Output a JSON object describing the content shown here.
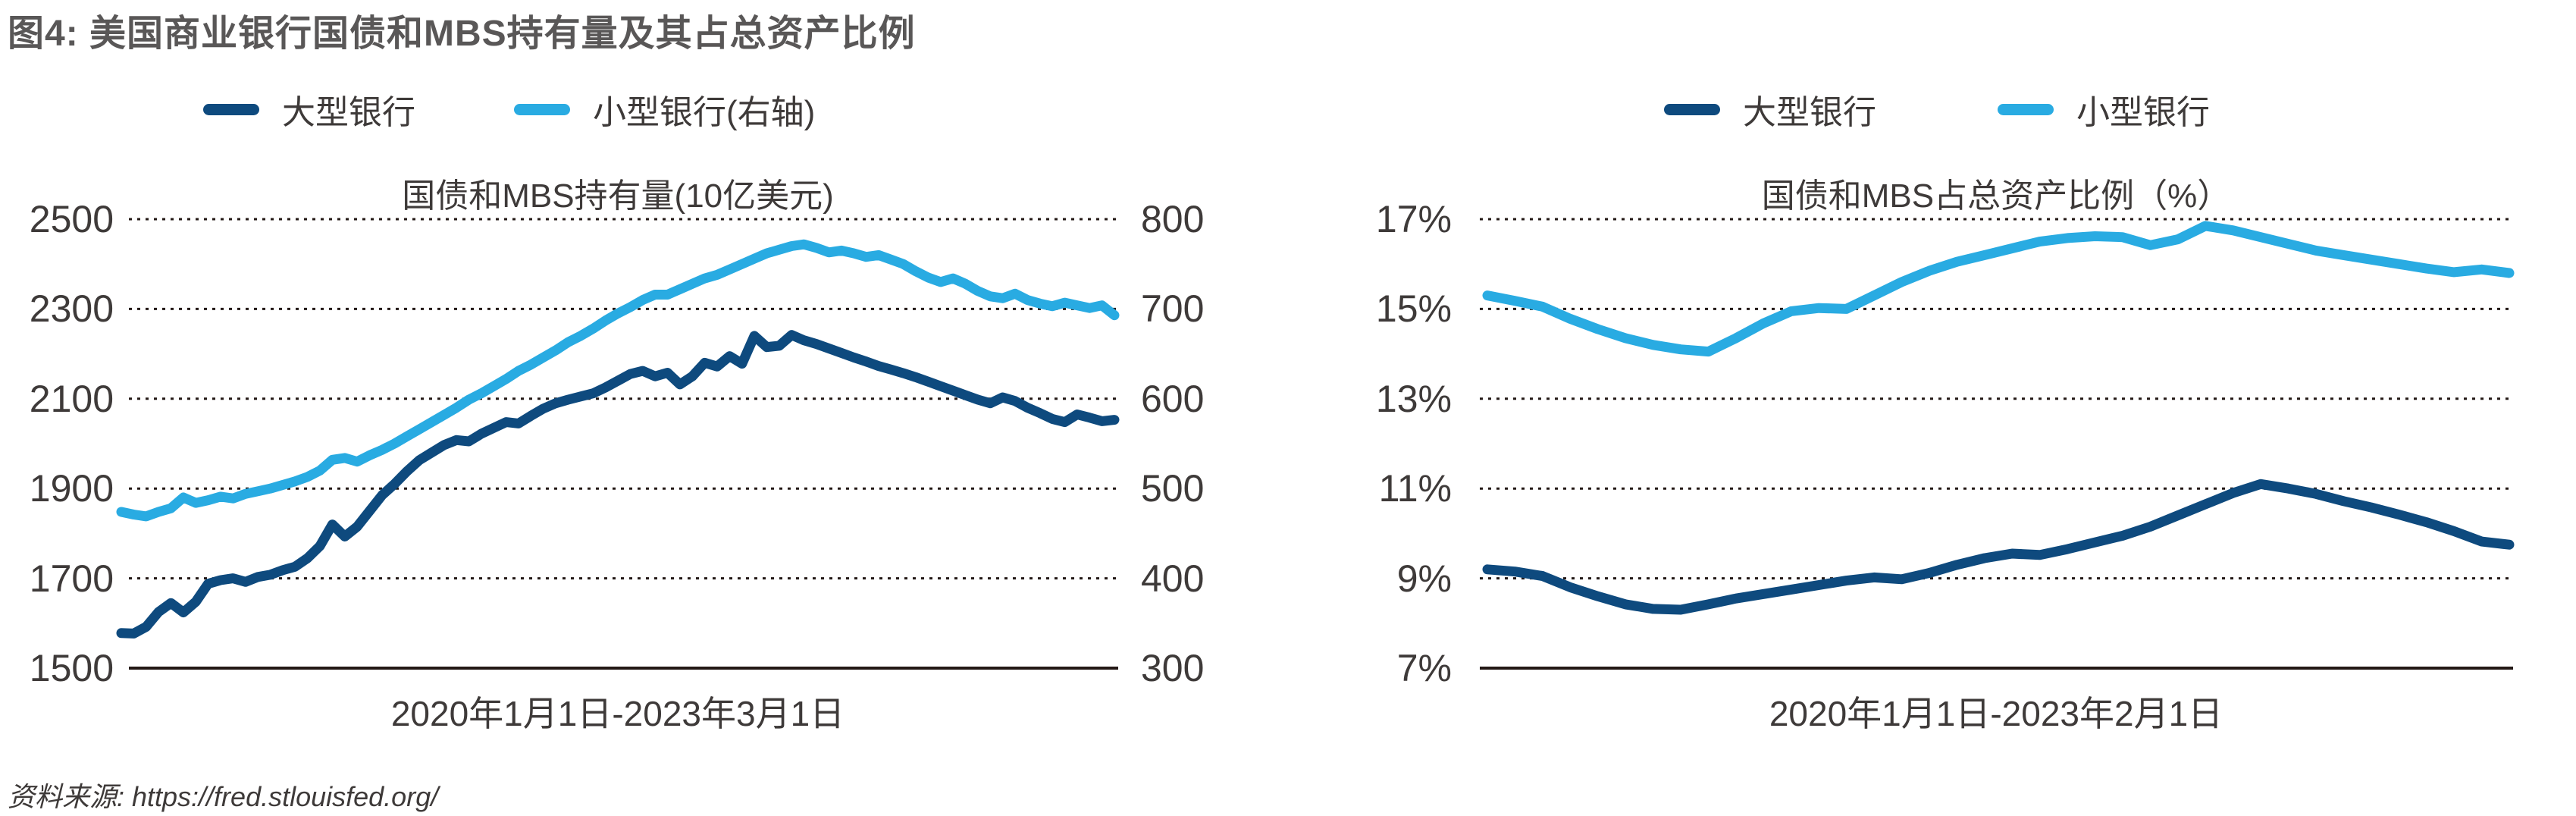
{
  "page_title": "图4: 美国商业银行国债和MBS持有量及其占总资产比例",
  "source_note": "资料来源: https://fred.stlouisfed.org/",
  "colors": {
    "large_banks": "#0e4a7e",
    "small_banks": "#29abe2",
    "title_gray": "#595757",
    "text_dark": "#3e3a39",
    "gridline": "#231815"
  },
  "chart_data": [
    {
      "id": "holdings",
      "type": "line",
      "title": "国债和MBS持有量(10亿美元)",
      "xlabel": "2020年1月1日-2023年3月1日",
      "grid": "dotted-horizontal",
      "legend": [
        {
          "name": "大型银行",
          "color": "#0e4a7e"
        },
        {
          "name": "小型银行(右轴)",
          "color": "#29abe2"
        }
      ],
      "left_axis": {
        "tick_labels": [
          "2500",
          "2300",
          "2100",
          "1900",
          "1700",
          "1500"
        ],
        "range": [
          1500,
          2500
        ]
      },
      "right_axis": {
        "tick_labels": [
          "800",
          "700",
          "600",
          "500",
          "400",
          "300"
        ],
        "range": [
          300,
          800
        ]
      },
      "x_range_note": "weekly observations, 2020-01-01 to 2023-03-01",
      "series": [
        {
          "name": "大型银行",
          "axis": "left",
          "color": "#0e4a7e",
          "values": [
            1578,
            1577,
            1592,
            1625,
            1645,
            1624,
            1648,
            1688,
            1696,
            1700,
            1692,
            1703,
            1708,
            1718,
            1726,
            1745,
            1772,
            1820,
            1793,
            1815,
            1850,
            1885,
            1910,
            1938,
            1963,
            1980,
            1997,
            2008,
            2005,
            2022,
            2035,
            2048,
            2045,
            2062,
            2078,
            2090,
            2098,
            2105,
            2112,
            2125,
            2140,
            2155,
            2162,
            2150,
            2158,
            2132,
            2150,
            2180,
            2172,
            2195,
            2178,
            2240,
            2215,
            2218,
            2242,
            2230,
            2222,
            2212,
            2202,
            2192,
            2183,
            2173,
            2165,
            2157,
            2148,
            2138,
            2128,
            2118,
            2108,
            2098,
            2090,
            2103,
            2095,
            2080,
            2068,
            2055,
            2048,
            2065,
            2058,
            2050,
            2053
          ]
        },
        {
          "name": "小型银行(右轴)",
          "axis": "right",
          "color": "#29abe2",
          "values": [
            474,
            471,
            469,
            474,
            478,
            490,
            484,
            487,
            491,
            489,
            494,
            497,
            500,
            504,
            508,
            513,
            520,
            532,
            534,
            530,
            537,
            543,
            550,
            558,
            566,
            574,
            582,
            590,
            599,
            606,
            614,
            622,
            631,
            638,
            646,
            654,
            663,
            670,
            678,
            687,
            695,
            702,
            710,
            716,
            716,
            722,
            728,
            734,
            738,
            744,
            750,
            756,
            762,
            766,
            770,
            772,
            768,
            763,
            765,
            762,
            758,
            760,
            755,
            750,
            742,
            735,
            730,
            734,
            728,
            720,
            714,
            712,
            717,
            710,
            706,
            703,
            707,
            704,
            701,
            704,
            693
          ]
        }
      ]
    },
    {
      "id": "share-of-assets",
      "type": "line",
      "title": "国债和MBS占总资产比例（%）",
      "xlabel": "2020年1月1日-2023年2月1日",
      "grid": "dotted-horizontal",
      "legend": [
        {
          "name": "大型银行",
          "color": "#0e4a7e"
        },
        {
          "name": "小型银行",
          "color": "#29abe2"
        }
      ],
      "left_axis": {
        "tick_labels": [
          "17%",
          "15%",
          "13%",
          "11%",
          "9%",
          "7%"
        ],
        "range": [
          7,
          17
        ]
      },
      "right_axis": null,
      "x_range_note": "monthly observations, 2020-01-01 to 2023-02-01",
      "series": [
        {
          "name": "大型银行",
          "axis": "left",
          "color": "#0e4a7e",
          "values": [
            9.2,
            9.15,
            9.05,
            8.8,
            8.6,
            8.42,
            8.32,
            8.3,
            8.42,
            8.55,
            8.65,
            8.75,
            8.85,
            8.95,
            9.02,
            8.98,
            9.12,
            9.3,
            9.45,
            9.55,
            9.52,
            9.65,
            9.8,
            9.95,
            10.15,
            10.4,
            10.65,
            10.9,
            11.1,
            11.0,
            10.88,
            10.72,
            10.58,
            10.42,
            10.25,
            10.05,
            9.82,
            9.75
          ]
        },
        {
          "name": "小型银行",
          "axis": "left",
          "color": "#29abe2",
          "values": [
            15.3,
            15.18,
            15.05,
            14.78,
            14.55,
            14.35,
            14.2,
            14.1,
            14.05,
            14.35,
            14.68,
            14.95,
            15.02,
            15.0,
            15.3,
            15.6,
            15.85,
            16.05,
            16.2,
            16.35,
            16.5,
            16.58,
            16.62,
            16.6,
            16.42,
            16.55,
            16.85,
            16.75,
            16.6,
            16.45,
            16.3,
            16.2,
            16.1,
            16.0,
            15.9,
            15.82,
            15.88,
            15.8
          ]
        }
      ]
    }
  ]
}
